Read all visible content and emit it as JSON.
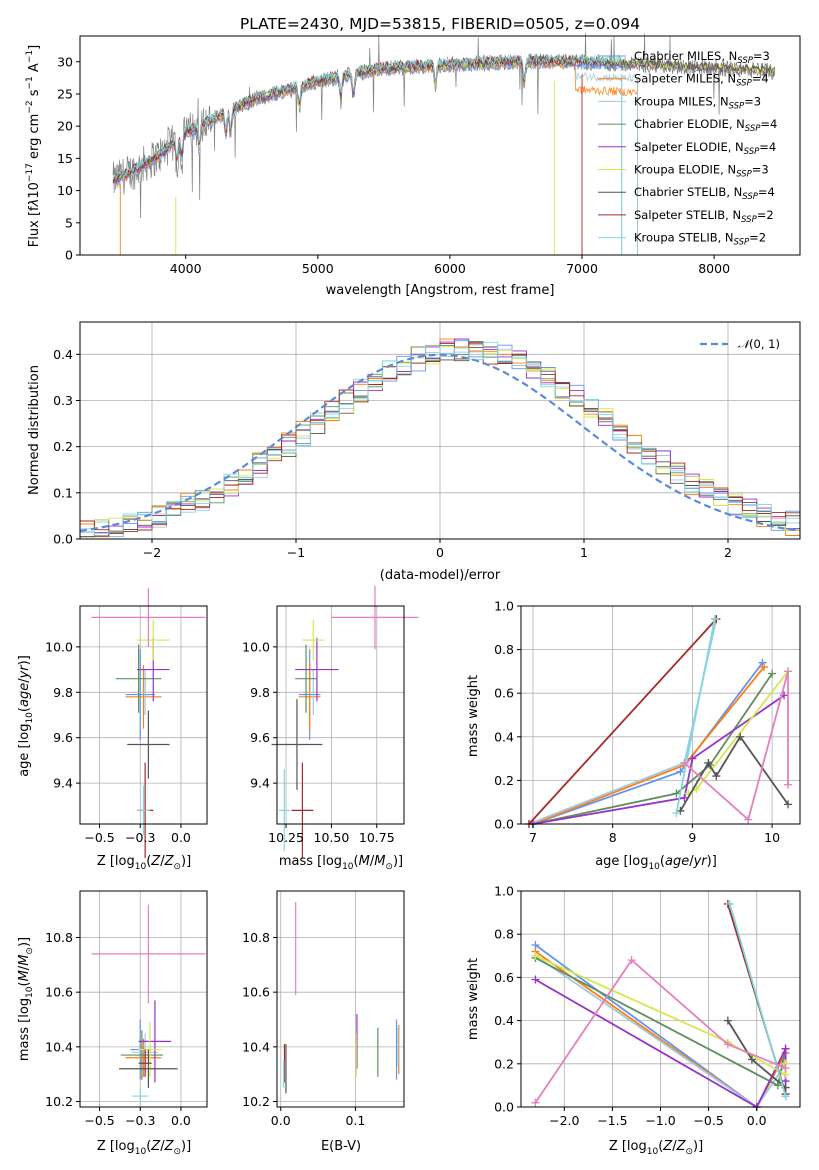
{
  "colors": [
    "#6495ed",
    "#ff7f0e",
    "#9ecae1",
    "#5f8f5f",
    "#9932cc",
    "#d4e84e",
    "#555555",
    "#a52a2a",
    "#7fd8e0"
  ],
  "models": [
    "Chabrier MILES, N$_{SSP}$=3",
    "Salpeter MILES, N$_{SSP}$=4",
    "Kroupa MILES, N$_{SSP}$=3",
    "Chabrier ELODIE, N$_{SSP}$=4",
    "Salpeter ELODIE, N$_{SSP}$=4",
    "Kroupa ELODIE, N$_{SSP}$=3",
    "Chabrier STELIB, N$_{SSP}$=4",
    "Salpeter STELIB, N$_{SSP}$=2",
    "Kroupa STELIB, N$_{SSP}$=2"
  ],
  "chart_data": [
    {
      "id": "spectrum",
      "type": "line",
      "title": "PLATE=2430, MJD=53815, FIBERID=0505, z=0.094",
      "xlabel": "wavelength [Angstrom, rest frame]",
      "ylabel": "Flux [f$_\\lambda$10$^{-17}$ erg cm$^{-2}$ s$^{-1}$ A$^{-1}$]",
      "xlim": [
        3200,
        8650
      ],
      "ylim": [
        0,
        34
      ],
      "xticks": [
        4000,
        5000,
        6000,
        7000,
        8000
      ],
      "yticks": [
        0,
        5,
        10,
        15,
        20,
        25,
        30
      ],
      "grid": false,
      "legend": "top-right",
      "continuum": {
        "x": [
          3450,
          3600,
          3800,
          4000,
          4200,
          4500,
          5000,
          5500,
          6000,
          6500,
          7000,
          7500,
          8000,
          8450
        ],
        "y": [
          11.5,
          13,
          15.5,
          19,
          21,
          24,
          27,
          29,
          29.5,
          30,
          30,
          29.5,
          29,
          28.5
        ]
      }
    },
    {
      "id": "residuals",
      "type": "step",
      "xlabel": "(data-model)/error",
      "ylabel": "Normed distribution",
      "xlim": [
        -2.5,
        2.5
      ],
      "ylim": [
        0,
        0.47
      ],
      "xticks": [
        -2,
        -1,
        0,
        1,
        2
      ],
      "yticks": [
        0.0,
        0.1,
        0.2,
        0.3,
        0.4
      ],
      "grid": true,
      "legend": "top-right",
      "reference": {
        "name": "$\\mathcal{N}(0, 1)$",
        "mean": 0,
        "sigma": 1
      }
    },
    {
      "id": "age-vs-Z",
      "type": "errorbar",
      "xlabel": "Z [log$_{10}$(Z/Z$_\\odot$)]",
      "ylabel": "age  [log$_{10}$(age/yr)]",
      "xlim": [
        -0.62,
        0.16
      ],
      "ylim": [
        9.22,
        10.18
      ],
      "xticks": [
        -0.5,
        -0.25,
        0.0
      ],
      "yticks": [
        9.4,
        9.6,
        9.8,
        10.0
      ],
      "grid": true,
      "points": [
        {
          "x": -0.25,
          "y": 9.79,
          "xerr": 0.09,
          "yerr": 0.2
        },
        {
          "x": -0.23,
          "y": 9.78,
          "xerr": 0.11,
          "yerr": 0.14
        },
        {
          "x": -0.22,
          "y": 9.8,
          "xerr": 0.08,
          "yerr": 0.1
        },
        {
          "x": -0.26,
          "y": 9.86,
          "xerr": 0.14,
          "yerr": 0.15
        },
        {
          "x": -0.17,
          "y": 9.9,
          "xerr": 0.1,
          "yerr": 0.14
        },
        {
          "x": -0.17,
          "y": 10.03,
          "xerr": 0.1,
          "yerr": 0.09
        },
        {
          "x": -0.2,
          "y": 9.57,
          "xerr": 0.13,
          "yerr": 0.15
        },
        {
          "x": -0.22,
          "y": 9.28,
          "xerr": 0.05,
          "yerr": 0.21
        },
        {
          "x": -0.23,
          "y": 9.28,
          "xerr": 0.04,
          "yerr": 0.11
        },
        {
          "x": -0.2,
          "y": 10.13,
          "xerr": 0.35,
          "yerr": 0.13
        }
      ]
    },
    {
      "id": "age-vs-mass",
      "type": "errorbar",
      "xlabel": "mass [log$_{10}$(M/M$_\\odot$)]",
      "ylabel": "",
      "xlim": [
        10.2,
        10.9
      ],
      "ylim": [
        9.22,
        10.18
      ],
      "xticks": [
        10.25,
        10.5,
        10.75
      ],
      "yticks": [
        9.4,
        9.6,
        9.8,
        10.0
      ],
      "grid": true,
      "points": [
        {
          "x": 10.38,
          "y": 9.79,
          "xerr": 0.06,
          "yerr": 0.2
        },
        {
          "x": 10.38,
          "y": 9.78,
          "xerr": 0.06,
          "yerr": 0.15
        },
        {
          "x": 10.4,
          "y": 9.8,
          "xerr": 0.06,
          "yerr": 0.1
        },
        {
          "x": 10.36,
          "y": 9.86,
          "xerr": 0.06,
          "yerr": 0.15
        },
        {
          "x": 10.42,
          "y": 9.9,
          "xerr": 0.12,
          "yerr": 0.14
        },
        {
          "x": 10.4,
          "y": 10.03,
          "xerr": 0.06,
          "yerr": 0.09
        },
        {
          "x": 10.31,
          "y": 9.57,
          "xerr": 0.14,
          "yerr": 0.2
        },
        {
          "x": 10.34,
          "y": 9.28,
          "xerr": 0.06,
          "yerr": 0.21
        },
        {
          "x": 10.24,
          "y": 9.28,
          "xerr": 0.03,
          "yerr": 0.18
        },
        {
          "x": 10.74,
          "y": 10.13,
          "xerr": 0.24,
          "yerr": 0.14
        }
      ]
    },
    {
      "id": "massweight-vs-age",
      "type": "line",
      "xlabel": "age  [log$_{10}$(age/yr)]",
      "ylabel": "mass weight",
      "xlim": [
        6.85,
        10.35
      ],
      "ylim": [
        0,
        1
      ],
      "xticks": [
        7,
        8,
        9,
        10
      ],
      "yticks": [
        0.0,
        0.2,
        0.4,
        0.6,
        0.8,
        1.0
      ],
      "grid": true,
      "series": [
        {
          "x": [
            7.0,
            8.85,
            9.88
          ],
          "y": [
            0.0,
            0.24,
            0.74
          ]
        },
        {
          "x": [
            7.0,
            8.9,
            9.9
          ],
          "y": [
            0.0,
            0.27,
            0.72
          ]
        },
        {
          "x": [
            6.95,
            8.9,
            9.3
          ],
          "y": [
            0.0,
            0.28,
            0.94
          ]
        },
        {
          "x": [
            7.0,
            8.8,
            9.22,
            10.0
          ],
          "y": [
            0.0,
            0.14,
            0.27,
            0.69
          ]
        },
        {
          "x": [
            7.0,
            8.9,
            9.0,
            10.15
          ],
          "y": [
            0.0,
            0.12,
            0.3,
            0.59
          ]
        },
        {
          "x": [
            8.95,
            9.05,
            10.2
          ],
          "y": [
            0.14,
            0.16,
            0.7
          ]
        },
        {
          "x": [
            8.85,
            9.2,
            9.3,
            9.6,
            10.2
          ],
          "y": [
            0.06,
            0.28,
            0.22,
            0.4,
            0.09
          ]
        },
        {
          "x": [
            6.95,
            9.3
          ],
          "y": [
            0.0,
            0.94
          ]
        },
        {
          "x": [
            8.8,
            9.28
          ],
          "y": [
            0.05,
            0.94
          ]
        },
        {
          "x": [
            8.9,
            9.7,
            10.2,
            10.2
          ],
          "y": [
            0.28,
            0.02,
            0.7,
            0.18
          ]
        }
      ]
    },
    {
      "id": "mass-vs-Z",
      "type": "errorbar",
      "xlabel": "Z [log$_{10}$(Z/Z$_\\odot$)]",
      "ylabel": "mass [log$_{10}$(M/M$_\\odot$)]",
      "xlim": [
        -0.62,
        0.16
      ],
      "ylim": [
        10.18,
        10.97
      ],
      "xticks": [
        -0.5,
        -0.25,
        0.0
      ],
      "yticks": [
        10.2,
        10.4,
        10.6,
        10.8
      ],
      "grid": true,
      "points": [
        {
          "x": -0.25,
          "y": 10.39,
          "xerr": 0.06,
          "yerr": 0.11
        },
        {
          "x": -0.23,
          "y": 10.36,
          "xerr": 0.11,
          "yerr": 0.07
        },
        {
          "x": -0.22,
          "y": 10.38,
          "xerr": 0.08,
          "yerr": 0.07
        },
        {
          "x": -0.24,
          "y": 10.37,
          "xerr": 0.13,
          "yerr": 0.09
        },
        {
          "x": -0.16,
          "y": 10.42,
          "xerr": 0.1,
          "yerr": 0.15
        },
        {
          "x": -0.19,
          "y": 10.39,
          "xerr": 0.07,
          "yerr": 0.1
        },
        {
          "x": -0.2,
          "y": 10.32,
          "xerr": 0.18,
          "yerr": 0.07
        },
        {
          "x": -0.22,
          "y": 10.34,
          "xerr": 0.04,
          "yerr": 0.05
        },
        {
          "x": -0.25,
          "y": 10.22,
          "xerr": 0.05,
          "yerr": 0.03
        },
        {
          "x": -0.2,
          "y": 10.74,
          "xerr": 0.35,
          "yerr": 0.18
        }
      ]
    },
    {
      "id": "mass-vs-ebv",
      "type": "errorbar",
      "xlabel": "E(B-V)",
      "ylabel": "",
      "xlim": [
        -0.005,
        0.165
      ],
      "ylim": [
        10.18,
        10.97
      ],
      "xticks": [
        0.0,
        0.1
      ],
      "yticks": [
        10.2,
        10.4,
        10.6,
        10.8
      ],
      "grid": true,
      "points": [
        {
          "x": 0.155,
          "y": 10.39,
          "xerr": 0.0,
          "yerr": 0.11
        },
        {
          "x": 0.158,
          "y": 10.39,
          "xerr": 0.0,
          "yerr": 0.09
        },
        {
          "x": 0.157,
          "y": 10.4,
          "xerr": 0.0,
          "yerr": 0.07
        },
        {
          "x": 0.13,
          "y": 10.38,
          "xerr": 0.0,
          "yerr": 0.09
        },
        {
          "x": 0.102,
          "y": 10.42,
          "xerr": 0.0,
          "yerr": 0.1
        },
        {
          "x": 0.101,
          "y": 10.37,
          "xerr": 0.0,
          "yerr": 0.08
        },
        {
          "x": 0.007,
          "y": 10.32,
          "xerr": 0.0,
          "yerr": 0.09
        },
        {
          "x": 0.005,
          "y": 10.34,
          "xerr": 0.0,
          "yerr": 0.07
        },
        {
          "x": 0.004,
          "y": 10.3,
          "xerr": 0.0,
          "yerr": 0.05
        },
        {
          "x": 0.02,
          "y": 10.76,
          "xerr": 0.0,
          "yerr": 0.17
        }
      ]
    },
    {
      "id": "massweight-vs-Z",
      "type": "line",
      "xlabel": "Z [log$_{10}$(Z/Z$_\\odot$)]",
      "ylabel": "mass weight",
      "xlim": [
        -2.45,
        0.45
      ],
      "ylim": [
        0,
        1
      ],
      "xticks": [
        -2.0,
        -1.5,
        -1.0,
        -0.5,
        0.0
      ],
      "yticks": [
        0.0,
        0.2,
        0.4,
        0.6,
        0.8,
        1.0
      ],
      "grid": true,
      "series": [
        {
          "x": [
            -2.3,
            0.0,
            0.3,
            0.3
          ],
          "y": [
            0.75,
            0.0,
            0.25,
            0.05
          ]
        },
        {
          "x": [
            -2.3,
            0.0,
            0.3
          ],
          "y": [
            0.72,
            0.0,
            0.25
          ]
        },
        {
          "x": [
            -2.3,
            0.0,
            0.3
          ],
          "y": [
            0.7,
            0.0,
            0.2
          ]
        },
        {
          "x": [
            -2.3,
            0.22,
            0.3
          ],
          "y": [
            0.69,
            0.1,
            0.27
          ]
        },
        {
          "x": [
            -2.3,
            0.0,
            0.3,
            0.3
          ],
          "y": [
            0.59,
            0.0,
            0.27,
            0.12
          ]
        },
        {
          "x": [
            -2.3,
            -0.3,
            0.3,
            0.3
          ],
          "y": [
            0.7,
            0.3,
            0.15,
            0.2
          ]
        },
        {
          "x": [
            -0.3,
            -0.05,
            0.3
          ],
          "y": [
            0.4,
            0.22,
            0.09
          ]
        },
        {
          "x": [
            -0.3,
            0.3
          ],
          "y": [
            0.94,
            0.06
          ]
        },
        {
          "x": [
            -0.28,
            0.3
          ],
          "y": [
            0.94,
            0.05
          ]
        },
        {
          "x": [
            -2.3,
            -1.3,
            -0.3,
            0.3
          ],
          "y": [
            0.02,
            0.68,
            0.29,
            0.18
          ]
        }
      ]
    }
  ]
}
